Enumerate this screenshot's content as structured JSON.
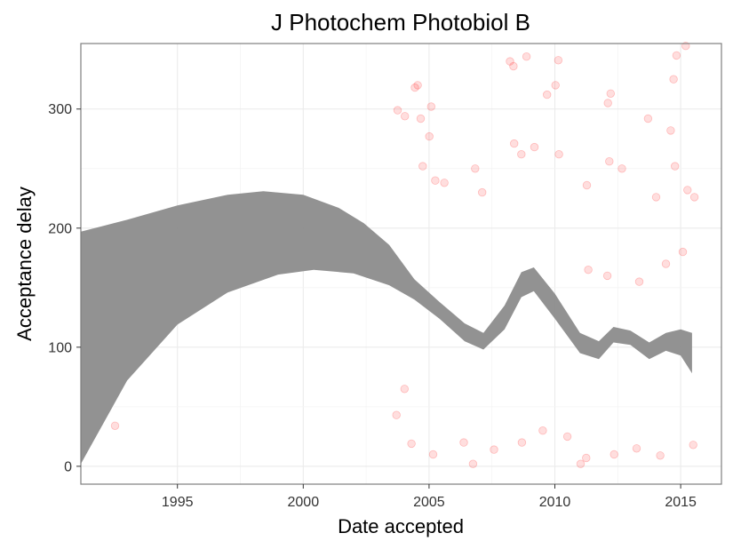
{
  "chart_data": {
    "type": "scatter",
    "title": "J Photochem Photobiol B",
    "xlabel": "Date accepted",
    "ylabel": "Acceptance delay",
    "x_axis_type": "date",
    "xlim": [
      "1991-03-01",
      "2016-08-15"
    ],
    "ylim": [
      -15,
      355
    ],
    "x_ticks": [
      {
        "value": "1995-01-01",
        "label": "1995"
      },
      {
        "value": "2000-01-01",
        "label": "2000"
      },
      {
        "value": "2005-01-01",
        "label": "2005"
      },
      {
        "value": "2010-01-01",
        "label": "2010"
      },
      {
        "value": "2015-01-01",
        "label": "2015"
      }
    ],
    "y_ticks": [
      {
        "value": 0,
        "label": "0"
      },
      {
        "value": 100,
        "label": "100"
      },
      {
        "value": 200,
        "label": "200"
      },
      {
        "value": 300,
        "label": "300"
      }
    ],
    "grid": true,
    "legend": "none",
    "colors": {
      "points": "#ff0000",
      "band": "#8c8c8c",
      "band_opacity": 0.95,
      "point_opacity": 0.13
    },
    "series": [
      {
        "kind": "scatter",
        "points": [
          {
            "x": "1992-07-10",
            "y": 34
          },
          {
            "x": "2003-10-01",
            "y": 299
          },
          {
            "x": "2004-01-15",
            "y": 294
          },
          {
            "x": "2004-06-10",
            "y": 318
          },
          {
            "x": "2004-07-20",
            "y": 320
          },
          {
            "x": "2004-09-01",
            "y": 292
          },
          {
            "x": "2005-02-01",
            "y": 302
          },
          {
            "x": "2005-01-05",
            "y": 277
          },
          {
            "x": "2008-03-20",
            "y": 340
          },
          {
            "x": "2008-05-10",
            "y": 336
          },
          {
            "x": "2008-11-15",
            "y": 344
          },
          {
            "x": "2009-09-10",
            "y": 312
          },
          {
            "x": "2010-01-10",
            "y": 320
          },
          {
            "x": "2010-02-20",
            "y": 341
          },
          {
            "x": "2012-02-10",
            "y": 305
          },
          {
            "x": "2012-03-20",
            "y": 313
          },
          {
            "x": "2013-09-15",
            "y": 292
          },
          {
            "x": "2014-08-10",
            "y": 282
          },
          {
            "x": "2014-09-20",
            "y": 325
          },
          {
            "x": "2014-11-01",
            "y": 345
          },
          {
            "x": "2015-03-15",
            "y": 353
          },
          {
            "x": "2004-10-01",
            "y": 252
          },
          {
            "x": "2005-04-01",
            "y": 240
          },
          {
            "x": "2005-08-10",
            "y": 238
          },
          {
            "x": "2006-11-01",
            "y": 250
          },
          {
            "x": "2007-02-10",
            "y": 230
          },
          {
            "x": "2008-05-20",
            "y": 271
          },
          {
            "x": "2008-09-01",
            "y": 262
          },
          {
            "x": "2009-03-10",
            "y": 268
          },
          {
            "x": "2010-03-01",
            "y": 262
          },
          {
            "x": "2011-04-10",
            "y": 236
          },
          {
            "x": "2012-03-01",
            "y": 256
          },
          {
            "x": "2012-09-01",
            "y": 250
          },
          {
            "x": "2014-01-10",
            "y": 226
          },
          {
            "x": "2014-10-10",
            "y": 252
          },
          {
            "x": "2015-04-10",
            "y": 232
          },
          {
            "x": "2015-07-20",
            "y": 226
          },
          {
            "x": "2003-09-15",
            "y": 43
          },
          {
            "x": "2004-01-10",
            "y": 65
          },
          {
            "x": "2004-04-20",
            "y": 19
          },
          {
            "x": "2005-03-01",
            "y": 10
          },
          {
            "x": "2006-05-20",
            "y": 20
          },
          {
            "x": "2006-10-01",
            "y": 2
          },
          {
            "x": "2007-08-01",
            "y": 14
          },
          {
            "x": "2008-09-10",
            "y": 20
          },
          {
            "x": "2009-07-10",
            "y": 30
          },
          {
            "x": "2010-07-01",
            "y": 25
          },
          {
            "x": "2011-01-10",
            "y": 2
          },
          {
            "x": "2011-04-01",
            "y": 7
          },
          {
            "x": "2012-05-10",
            "y": 10
          },
          {
            "x": "2013-04-01",
            "y": 15
          },
          {
            "x": "2014-03-10",
            "y": 9
          },
          {
            "x": "2015-07-01",
            "y": 18
          },
          {
            "x": "2011-05-01",
            "y": 165
          },
          {
            "x": "2012-02-01",
            "y": 160
          },
          {
            "x": "2013-05-10",
            "y": 155
          },
          {
            "x": "2014-06-01",
            "y": 170
          },
          {
            "x": "2015-02-01",
            "y": 180
          }
        ]
      },
      {
        "kind": "confidence_band",
        "lower": [
          {
            "x": "1991-03-01",
            "y": 2
          },
          {
            "x": "1993-01-01",
            "y": 72
          },
          {
            "x": "1995-01-01",
            "y": 119
          },
          {
            "x": "1997-01-01",
            "y": 146
          },
          {
            "x": "1999-01-01",
            "y": 161
          },
          {
            "x": "2000-06-01",
            "y": 165
          },
          {
            "x": "2002-01-01",
            "y": 162
          },
          {
            "x": "2003-06-01",
            "y": 152
          },
          {
            "x": "2004-06-01",
            "y": 140
          },
          {
            "x": "2005-06-01",
            "y": 124
          },
          {
            "x": "2006-06-01",
            "y": 105
          },
          {
            "x": "2007-03-01",
            "y": 98
          },
          {
            "x": "2008-01-01",
            "y": 115
          },
          {
            "x": "2008-09-01",
            "y": 142
          },
          {
            "x": "2009-03-01",
            "y": 147
          },
          {
            "x": "2010-01-01",
            "y": 124
          },
          {
            "x": "2011-01-01",
            "y": 95
          },
          {
            "x": "2011-10-01",
            "y": 90
          },
          {
            "x": "2012-05-01",
            "y": 104
          },
          {
            "x": "2013-01-01",
            "y": 102
          },
          {
            "x": "2013-10-01",
            "y": 90
          },
          {
            "x": "2014-06-01",
            "y": 97
          },
          {
            "x": "2015-01-01",
            "y": 93
          },
          {
            "x": "2015-06-15",
            "y": 78
          }
        ],
        "upper": [
          {
            "x": "1991-03-01",
            "y": 197
          },
          {
            "x": "1993-01-01",
            "y": 207
          },
          {
            "x": "1995-01-01",
            "y": 219
          },
          {
            "x": "1997-01-01",
            "y": 228
          },
          {
            "x": "1998-06-01",
            "y": 231
          },
          {
            "x": "2000-01-01",
            "y": 228
          },
          {
            "x": "2001-06-01",
            "y": 217
          },
          {
            "x": "2002-06-01",
            "y": 204
          },
          {
            "x": "2003-06-01",
            "y": 186
          },
          {
            "x": "2004-06-01",
            "y": 157
          },
          {
            "x": "2005-06-01",
            "y": 138
          },
          {
            "x": "2006-06-01",
            "y": 120
          },
          {
            "x": "2007-03-01",
            "y": 112
          },
          {
            "x": "2008-01-01",
            "y": 135
          },
          {
            "x": "2008-09-01",
            "y": 163
          },
          {
            "x": "2009-03-01",
            "y": 167
          },
          {
            "x": "2010-01-01",
            "y": 145
          },
          {
            "x": "2011-01-01",
            "y": 112
          },
          {
            "x": "2011-10-01",
            "y": 105
          },
          {
            "x": "2012-05-01",
            "y": 117
          },
          {
            "x": "2013-01-01",
            "y": 114
          },
          {
            "x": "2013-10-01",
            "y": 104
          },
          {
            "x": "2014-06-01",
            "y": 112
          },
          {
            "x": "2015-01-01",
            "y": 115
          },
          {
            "x": "2015-06-15",
            "y": 112
          }
        ]
      }
    ]
  }
}
